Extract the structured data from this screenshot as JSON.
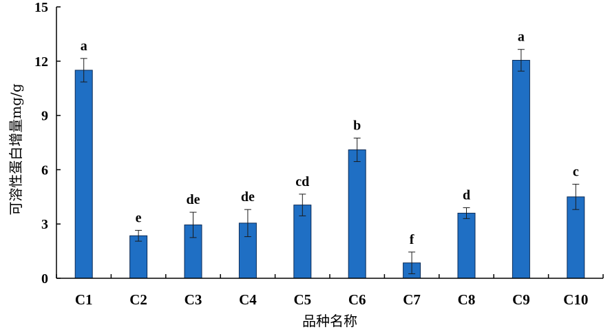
{
  "chart_data": {
    "type": "bar",
    "title": "",
    "xlabel": "品种名称",
    "ylabel": "可溶性蛋白增量mg/g",
    "ylim": [
      0,
      15
    ],
    "yticks": [
      "0",
      "3",
      "6",
      "9",
      "12",
      "15"
    ],
    "categories": [
      "C1",
      "C2",
      "C3",
      "C4",
      "C5",
      "C6",
      "C7",
      "C8",
      "C9",
      "C10"
    ],
    "values": [
      11.5,
      2.35,
      2.95,
      3.05,
      4.05,
      7.1,
      0.85,
      3.6,
      12.05,
      4.5
    ],
    "errors": [
      0.65,
      0.3,
      0.7,
      0.75,
      0.6,
      0.65,
      0.6,
      0.3,
      0.6,
      0.7
    ],
    "significance": [
      "a",
      "e",
      "de",
      "de",
      "cd",
      "b",
      "f",
      "d",
      "a",
      "c"
    ],
    "bar_color": "#1F6FC4",
    "grid": false,
    "legend": "none"
  }
}
